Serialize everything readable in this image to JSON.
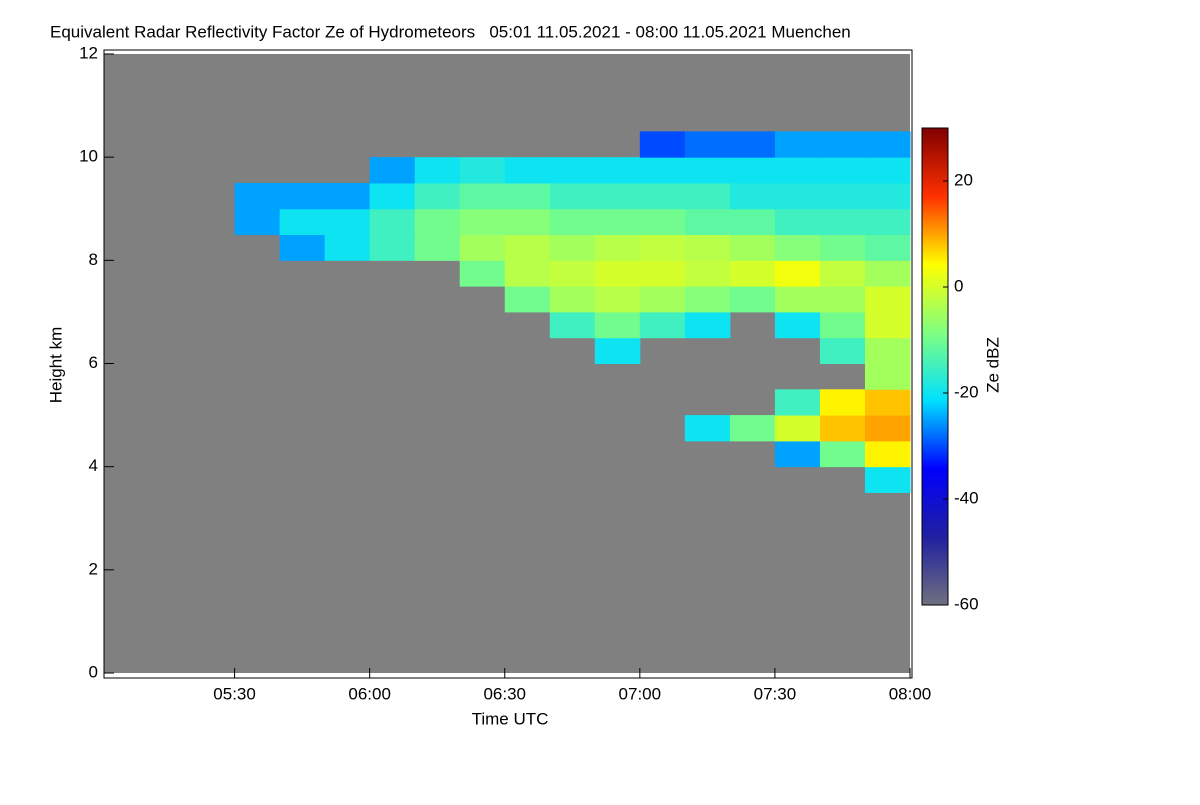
{
  "chart_data": {
    "type": "heatmap",
    "title": "Equivalent Radar Reflectivity Factor Ze of Hydrometeors   05:01 11.05.2021 - 08:00 11.05.2021 Muenchen",
    "x_label": "Time UTC",
    "y_label": "Height km",
    "colorbar_label": "Ze dBZ",
    "xlim": [
      "05:01",
      "08:00"
    ],
    "xticks": [
      "05:30",
      "06:00",
      "06:30",
      "07:00",
      "07:30",
      "08:00"
    ],
    "ylim": [
      0,
      12
    ],
    "yticks": [
      0,
      2,
      4,
      6,
      8,
      10,
      12
    ],
    "zlim": [
      -60,
      30
    ],
    "zticks": [
      -60,
      -40,
      -20,
      0,
      20
    ],
    "background": "#808080",
    "colormap": [
      "#707080",
      "#2020a0",
      "#0000ff",
      "#00e0ff",
      "#80ff80",
      "#ffff00",
      "#ff3000",
      "#800000"
    ],
    "xbins": [
      "05:30",
      "05:40",
      "05:50",
      "06:00",
      "06:10",
      "06:20",
      "06:30",
      "06:40",
      "06:50",
      "07:00",
      "07:10",
      "07:20",
      "07:30",
      "07:40",
      "07:50",
      "08:00"
    ],
    "ybins": [
      3.5,
      4,
      4.5,
      5,
      5.5,
      6,
      6.5,
      7,
      7.5,
      8,
      8.5,
      9,
      9.5,
      10,
      10.5
    ],
    "z": [
      [
        null,
        null,
        null,
        null,
        null,
        null,
        null,
        null,
        null,
        null,
        null,
        null,
        null,
        null,
        -20
      ],
      [
        null,
        null,
        null,
        null,
        null,
        null,
        null,
        null,
        null,
        null,
        null,
        null,
        -25,
        -10,
        5
      ],
      [
        null,
        null,
        null,
        null,
        null,
        null,
        null,
        null,
        null,
        null,
        -20,
        -10,
        0,
        8,
        10
      ],
      [
        null,
        null,
        null,
        null,
        null,
        null,
        null,
        null,
        null,
        null,
        null,
        null,
        -15,
        5,
        8
      ],
      [
        null,
        null,
        null,
        null,
        null,
        null,
        null,
        null,
        null,
        null,
        null,
        null,
        null,
        null,
        -5
      ],
      [
        null,
        null,
        null,
        null,
        null,
        null,
        null,
        null,
        -20,
        null,
        null,
        null,
        null,
        -15,
        -5
      ],
      [
        null,
        null,
        null,
        null,
        null,
        null,
        null,
        -15,
        -10,
        -15,
        -20,
        null,
        -20,
        -10,
        0
      ],
      [
        null,
        null,
        null,
        null,
        null,
        null,
        -10,
        -5,
        -3,
        -5,
        -8,
        -10,
        -5,
        -5,
        0
      ],
      [
        null,
        null,
        null,
        null,
        null,
        -10,
        -3,
        -2,
        0,
        0,
        -2,
        0,
        3,
        -2,
        -5
      ],
      [
        null,
        -25,
        -20,
        -15,
        -10,
        -5,
        -3,
        -5,
        -3,
        -2,
        -3,
        -5,
        -8,
        -10,
        -12
      ],
      [
        -25,
        -20,
        -20,
        -15,
        -10,
        -8,
        -8,
        -10,
        -10,
        -10,
        -12,
        -12,
        -15,
        -15,
        -15
      ],
      [
        -25,
        -25,
        -25,
        -20,
        -15,
        -12,
        -12,
        -15,
        -15,
        -15,
        -15,
        -18,
        -18,
        -18,
        -18
      ],
      [
        null,
        null,
        null,
        -25,
        -20,
        -18,
        -20,
        -20,
        -20,
        -20,
        -20,
        -20,
        -20,
        -20,
        -20
      ],
      [
        null,
        null,
        null,
        null,
        null,
        null,
        null,
        null,
        null,
        -30,
        -28,
        -28,
        -25,
        -25,
        -25
      ]
    ]
  }
}
